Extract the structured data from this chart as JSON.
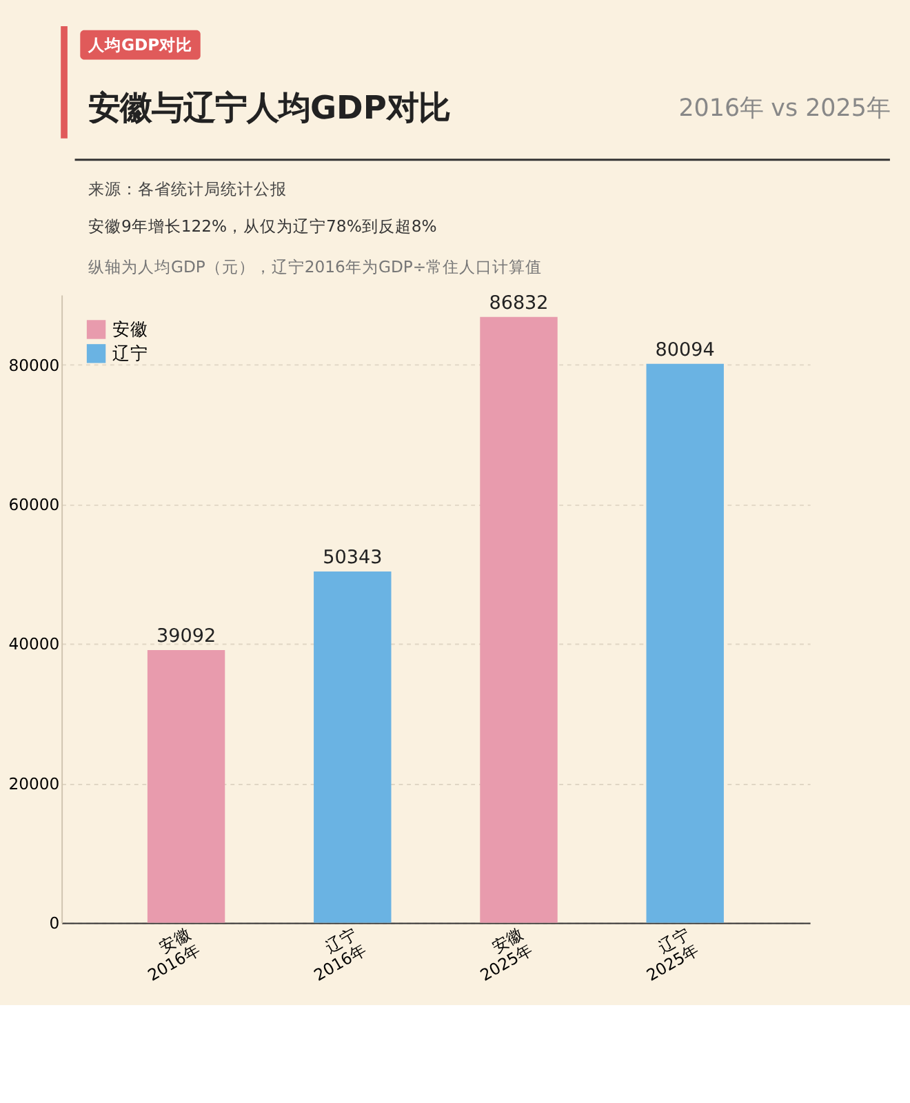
{
  "chart_data": {
    "type": "bar",
    "title": "安徽与辽宁人均GDP对比",
    "subtitle": "2016年 vs 2025年",
    "annotations": [
      "人均GDP对比",
      "来源：各省统计局统计公报",
      "安徽9年增长122%，从仅为辽宁78%到反超8%",
      "纵轴为人均GDP（元），辽宁2016年为GDP÷常住人口计算值"
    ],
    "categories": [
      "安徽\n2016年",
      "辽宁\n2016年",
      "安徽\n2025年",
      "辽宁\n2025年"
    ],
    "series": [
      {
        "name": "安徽",
        "color": "#e89bad",
        "values": [
          39092,
          null,
          86832,
          null
        ]
      },
      {
        "name": "辽宁",
        "color": "#6ab3e3",
        "values": [
          null,
          50343,
          null,
          80094
        ]
      }
    ],
    "ylim": [
      0,
      90000
    ],
    "yticks": [
      0,
      20000,
      40000,
      60000,
      80000
    ],
    "grid": "y",
    "legend": "top left",
    "data_labels": true
  }
}
